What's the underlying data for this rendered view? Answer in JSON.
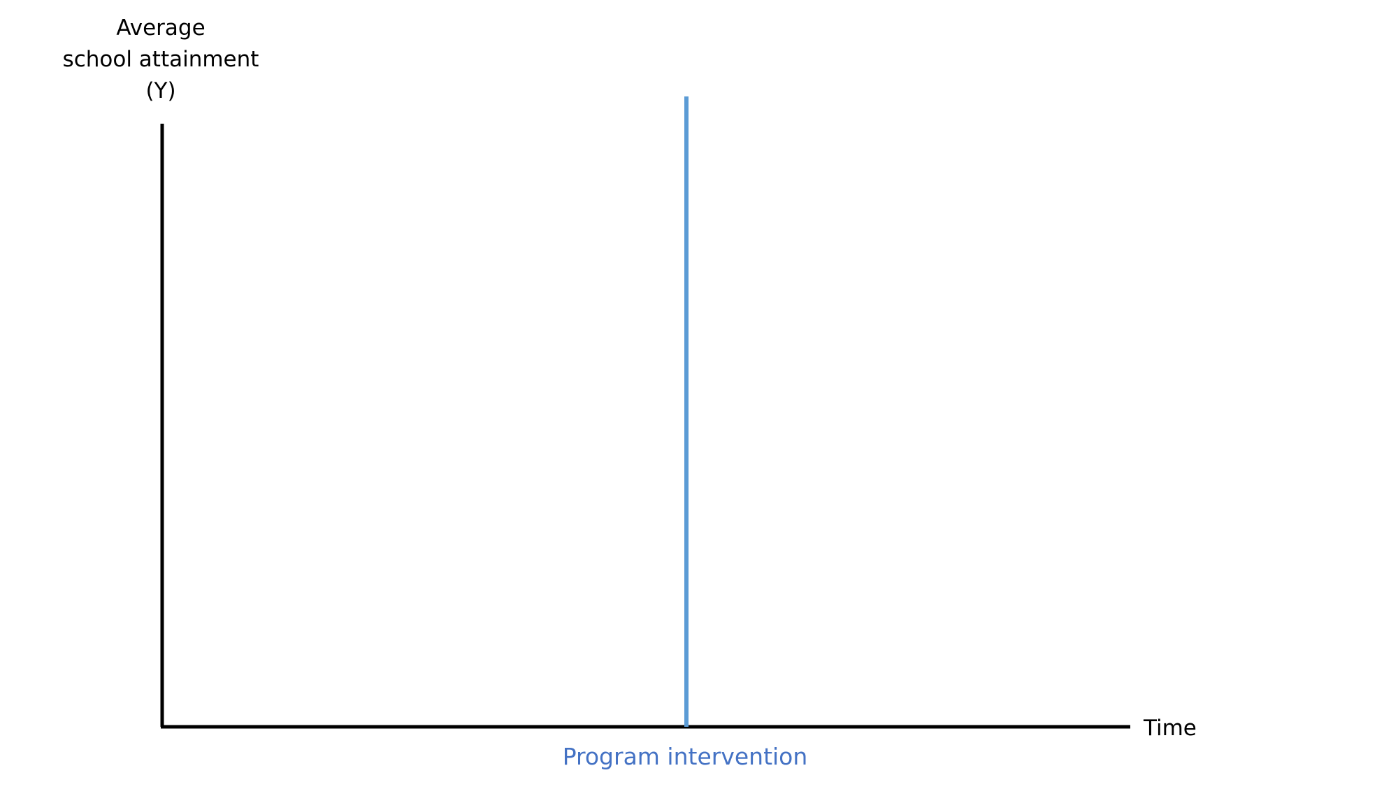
{
  "diagram": {
    "y_axis_label_lines": [
      "Average",
      "school attainment",
      "(Y)"
    ],
    "x_axis_label": "Time",
    "intervention_label": "Program intervention"
  },
  "colors": {
    "axis": "#000000",
    "intervention_line": "#5b9bd5",
    "intervention_text": "#4472c4"
  }
}
